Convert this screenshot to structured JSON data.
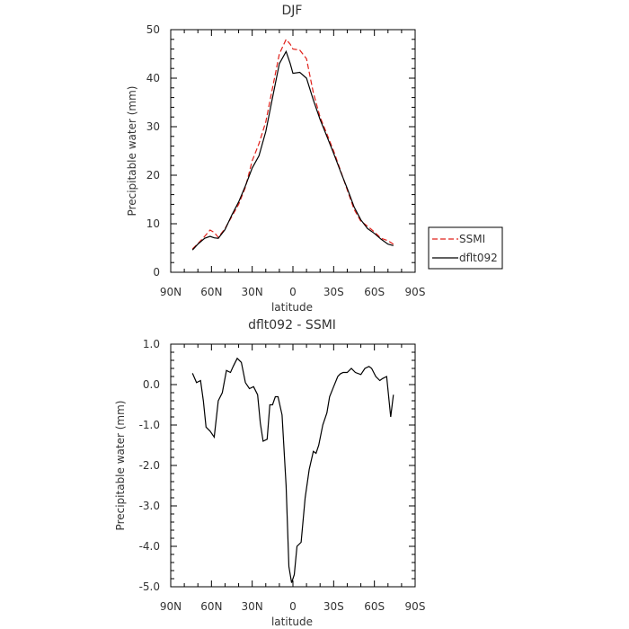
{
  "chart_data": [
    {
      "type": "line",
      "title": "DJF",
      "xlabel": "latitude",
      "ylabel": "Precipitable water (mm)",
      "xlim": [
        90,
        -90
      ],
      "ylim": [
        0,
        50
      ],
      "x_ticks": [
        90,
        60,
        30,
        0,
        -30,
        -60,
        -90
      ],
      "x_tick_labels": [
        "90N",
        "60N",
        "30N",
        "0",
        "30S",
        "60S",
        "90S"
      ],
      "y_ticks": [
        0,
        10,
        20,
        30,
        40,
        50
      ],
      "y_tick_labels": [
        "0",
        "10",
        "20",
        "30",
        "40",
        "50"
      ],
      "grid": false,
      "legend_position": "outside-right",
      "legend": [
        "SSMI",
        "dflt092"
      ],
      "series": [
        {
          "name": "SSMI",
          "color": "#e0201a",
          "dash": "dashed",
          "x": [
            74,
            70,
            65,
            61,
            58,
            55,
            50,
            45,
            40,
            35,
            30,
            25,
            20,
            15,
            10,
            5,
            2,
            0,
            -5,
            -10,
            -15,
            -20,
            -25,
            -30,
            -35,
            -40,
            -45,
            -50,
            -55,
            -60,
            -65,
            -70,
            -74
          ],
          "y": [
            4.8,
            5.9,
            7.4,
            8.7,
            8.2,
            7.2,
            9.0,
            11.5,
            14.0,
            17.5,
            23.0,
            26.5,
            31.0,
            38.0,
            45.0,
            48.0,
            47.0,
            46.0,
            45.8,
            44.0,
            37.0,
            32.0,
            28.5,
            25.0,
            21.0,
            17.0,
            13.0,
            10.5,
            9.5,
            8.3,
            7.0,
            6.5,
            5.8
          ]
        },
        {
          "name": "dflt092",
          "color": "#000000",
          "dash": "solid",
          "x": [
            74,
            70,
            65,
            61,
            58,
            55,
            50,
            45,
            40,
            35,
            30,
            25,
            20,
            15,
            10,
            5,
            2,
            0,
            -5,
            -10,
            -15,
            -20,
            -25,
            -30,
            -35,
            -40,
            -45,
            -50,
            -55,
            -60,
            -65,
            -70,
            -74
          ],
          "y": [
            4.6,
            5.8,
            7.0,
            7.4,
            7.1,
            7.0,
            8.8,
            11.8,
            14.5,
            17.8,
            21.5,
            24.0,
            29.0,
            36.0,
            43.0,
            45.5,
            43.0,
            41.0,
            41.2,
            40.0,
            35.5,
            31.5,
            28.0,
            24.5,
            20.8,
            17.3,
            13.5,
            10.8,
            9.0,
            8.0,
            6.8,
            5.8,
            5.5
          ]
        }
      ]
    },
    {
      "type": "line",
      "title": "dflt092 - SSMI",
      "xlabel": "latitude",
      "ylabel": "Precipitable water (mm)",
      "xlim": [
        90,
        -90
      ],
      "ylim": [
        -5,
        1
      ],
      "x_ticks": [
        90,
        60,
        30,
        0,
        -30,
        -60,
        -90
      ],
      "x_tick_labels": [
        "90N",
        "60N",
        "30N",
        "0",
        "30S",
        "60S",
        "90S"
      ],
      "y_ticks": [
        1,
        0,
        -1,
        -2,
        -3,
        -4,
        -5
      ],
      "y_tick_labels": [
        "1.0",
        "0.0",
        "-1.0",
        "-2.0",
        "-3.0",
        "-4.0",
        "-5.0"
      ],
      "grid": false,
      "series": [
        {
          "color": "#000000",
          "dash": "solid",
          "x": [
            74,
            71,
            68,
            66,
            64,
            61,
            58,
            55,
            52,
            49,
            46,
            44,
            41,
            38,
            35,
            32,
            29,
            26,
            24,
            22,
            19,
            17,
            15,
            13,
            11,
            8,
            5,
            3,
            1,
            -1,
            -3,
            -6,
            -9,
            -12,
            -15,
            -17,
            -19,
            -22,
            -25,
            -27,
            -30,
            -33,
            -35,
            -37,
            -40,
            -43,
            -46,
            -50,
            -53,
            -56,
            -58,
            -61,
            -64,
            -66,
            -69,
            -72,
            -74
          ],
          "y": [
            0.28,
            0.05,
            0.1,
            -0.4,
            -1.05,
            -1.15,
            -1.3,
            -0.4,
            -0.2,
            0.35,
            0.3,
            0.45,
            0.65,
            0.55,
            0.05,
            -0.1,
            -0.05,
            -0.25,
            -0.95,
            -1.4,
            -1.35,
            -0.5,
            -0.5,
            -0.3,
            -0.3,
            -0.75,
            -2.5,
            -4.5,
            -4.9,
            -4.7,
            -4.0,
            -3.9,
            -2.8,
            -2.1,
            -1.65,
            -1.7,
            -1.5,
            -1.0,
            -0.7,
            -0.3,
            -0.05,
            0.2,
            0.27,
            0.3,
            0.3,
            0.4,
            0.3,
            0.25,
            0.4,
            0.45,
            0.4,
            0.2,
            0.1,
            0.15,
            0.2,
            -0.8,
            -0.25
          ]
        }
      ]
    }
  ]
}
